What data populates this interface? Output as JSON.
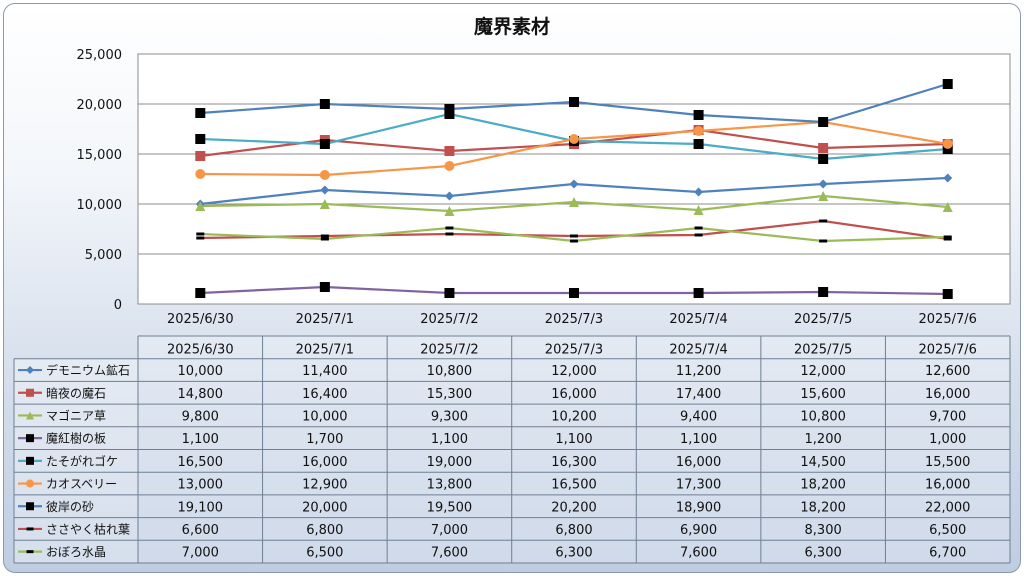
{
  "chart_data": {
    "type": "line",
    "title": "魔界素材",
    "categories": [
      "2025/6/30",
      "2025/7/1",
      "2025/7/2",
      "2025/7/3",
      "2025/7/4",
      "2025/7/5",
      "2025/7/6"
    ],
    "ylim": [
      0,
      25000
    ],
    "yticks": [
      "0",
      "5,000",
      "10,000",
      "15,000",
      "20,000",
      "25,000"
    ],
    "grid": true,
    "legend": "data table below the plot",
    "series": [
      {
        "name": "デモニウム鉱石",
        "color": "#4f81bd",
        "marker": "diamond",
        "values": [
          10000,
          11400,
          10800,
          12000,
          11200,
          12000,
          12600
        ],
        "labels": [
          "10,000",
          "11,400",
          "10,800",
          "12,000",
          "11,200",
          "12,000",
          "12,600"
        ]
      },
      {
        "name": "暗夜の魔石",
        "color": "#c0504d",
        "marker": "square",
        "values": [
          14800,
          16400,
          15300,
          16000,
          17400,
          15600,
          16000
        ],
        "labels": [
          "14,800",
          "16,400",
          "15,300",
          "16,000",
          "17,400",
          "15,600",
          "16,000"
        ]
      },
      {
        "name": "マゴニア草",
        "color": "#9bbb59",
        "marker": "triangle",
        "values": [
          9800,
          10000,
          9300,
          10200,
          9400,
          10800,
          9700
        ],
        "labels": [
          "9,800",
          "10,000",
          "9,300",
          "10,200",
          "9,400",
          "10,800",
          "9,700"
        ]
      },
      {
        "name": "魔紅樹の板",
        "color": "#8064a2",
        "marker": "square-black",
        "values": [
          1100,
          1700,
          1100,
          1100,
          1100,
          1200,
          1000
        ],
        "labels": [
          "1,100",
          "1,700",
          "1,100",
          "1,100",
          "1,100",
          "1,200",
          "1,000"
        ]
      },
      {
        "name": "たそがれゴケ",
        "color": "#4bacc6",
        "marker": "square-black",
        "values": [
          16500,
          16000,
          19000,
          16300,
          16000,
          14500,
          15500
        ],
        "labels": [
          "16,500",
          "16,000",
          "19,000",
          "16,300",
          "16,000",
          "14,500",
          "15,500"
        ]
      },
      {
        "name": "カオスベリー",
        "color": "#f79646",
        "marker": "circle",
        "values": [
          13000,
          12900,
          13800,
          16500,
          17300,
          18200,
          16000
        ],
        "labels": [
          "13,000",
          "12,900",
          "13,800",
          "16,500",
          "17,300",
          "18,200",
          "16,000"
        ]
      },
      {
        "name": "彼岸の砂",
        "color": "#4f81bd",
        "marker": "square-black",
        "values": [
          19100,
          20000,
          19500,
          20200,
          18900,
          18200,
          22000
        ],
        "labels": [
          "19,100",
          "20,000",
          "19,500",
          "20,200",
          "18,900",
          "18,200",
          "22,000"
        ]
      },
      {
        "name": "ささやく枯れ葉",
        "color": "#c0504d",
        "marker": "dash-black",
        "values": [
          6600,
          6800,
          7000,
          6800,
          6900,
          8300,
          6500
        ],
        "labels": [
          "6,600",
          "6,800",
          "7,000",
          "6,800",
          "6,900",
          "8,300",
          "6,500"
        ]
      },
      {
        "name": "おぼろ水晶",
        "color": "#9bbb59",
        "marker": "dash-black",
        "values": [
          7000,
          6500,
          7600,
          6300,
          7600,
          6300,
          6700
        ],
        "labels": [
          "7,000",
          "6,500",
          "7,600",
          "6,300",
          "7,600",
          "6,300",
          "6,700"
        ]
      }
    ]
  }
}
